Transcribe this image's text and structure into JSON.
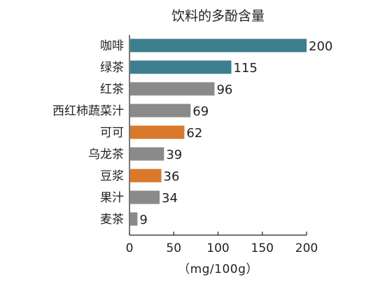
{
  "chart_data": {
    "type": "bar",
    "orientation": "horizontal",
    "title": "饮料的多酚含量",
    "xlabel": "（mg/100g）",
    "ylabel": "",
    "xlim": [
      0,
      200
    ],
    "xticks": [
      0,
      50,
      100,
      150,
      200
    ],
    "grid": false,
    "categories": [
      "咖啡",
      "绿茶",
      "红茶",
      "西红柿蔬菜汁",
      "可可",
      "乌龙茶",
      "豆浆",
      "果汁",
      "麦茶"
    ],
    "values": [
      200,
      115,
      96,
      69,
      62,
      39,
      36,
      34,
      9
    ],
    "bar_colors": [
      "#3d7f8e",
      "#3d7f8e",
      "#8a8a8a",
      "#8a8a8a",
      "#d8792b",
      "#8a8a8a",
      "#d8792b",
      "#8a8a8a",
      "#8a8a8a"
    ],
    "data_labels": [
      "200",
      "115",
      "96",
      "69",
      "62",
      "39",
      "36",
      "34",
      "9"
    ]
  }
}
